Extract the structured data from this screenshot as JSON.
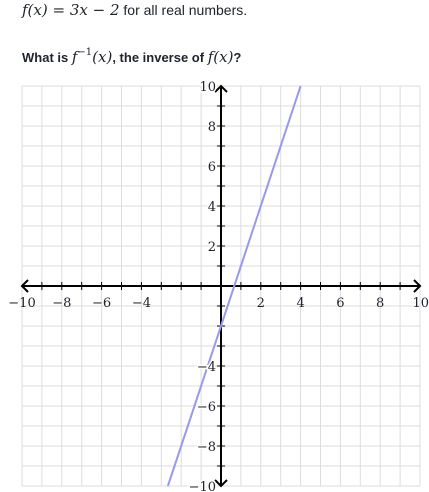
{
  "statement": {
    "func_left": "f(x)",
    "func_eq": "=",
    "func_expr": "3x − 2",
    "rest": " for all real numbers."
  },
  "question": {
    "lead": "What is ",
    "finv_f": "f",
    "finv_sup": "−1",
    "finv_arg": "(x)",
    "middle": ", the inverse of ",
    "f_of_x": "f(x)",
    "end": "?"
  },
  "chart_data": {
    "type": "line",
    "title": "",
    "xlabel": "",
    "ylabel": "",
    "xlim": [
      -10,
      10
    ],
    "ylim": [
      -10,
      10
    ],
    "grid": true,
    "grid_step": 1,
    "x_ticks": [
      -10,
      -8,
      -6,
      -4,
      2,
      4,
      6,
      8,
      10
    ],
    "y_ticks": [
      10,
      8,
      6,
      4,
      2,
      -4,
      -6,
      -8,
      -10
    ],
    "series": [
      {
        "equation": "y = 3x − 2",
        "color": "#9999ee",
        "x": [
          -2.67,
          -2,
          -1,
          0,
          1,
          2,
          3,
          4
        ],
        "y": [
          -10,
          -8,
          -5,
          -2,
          1,
          4,
          7,
          10
        ]
      }
    ]
  }
}
